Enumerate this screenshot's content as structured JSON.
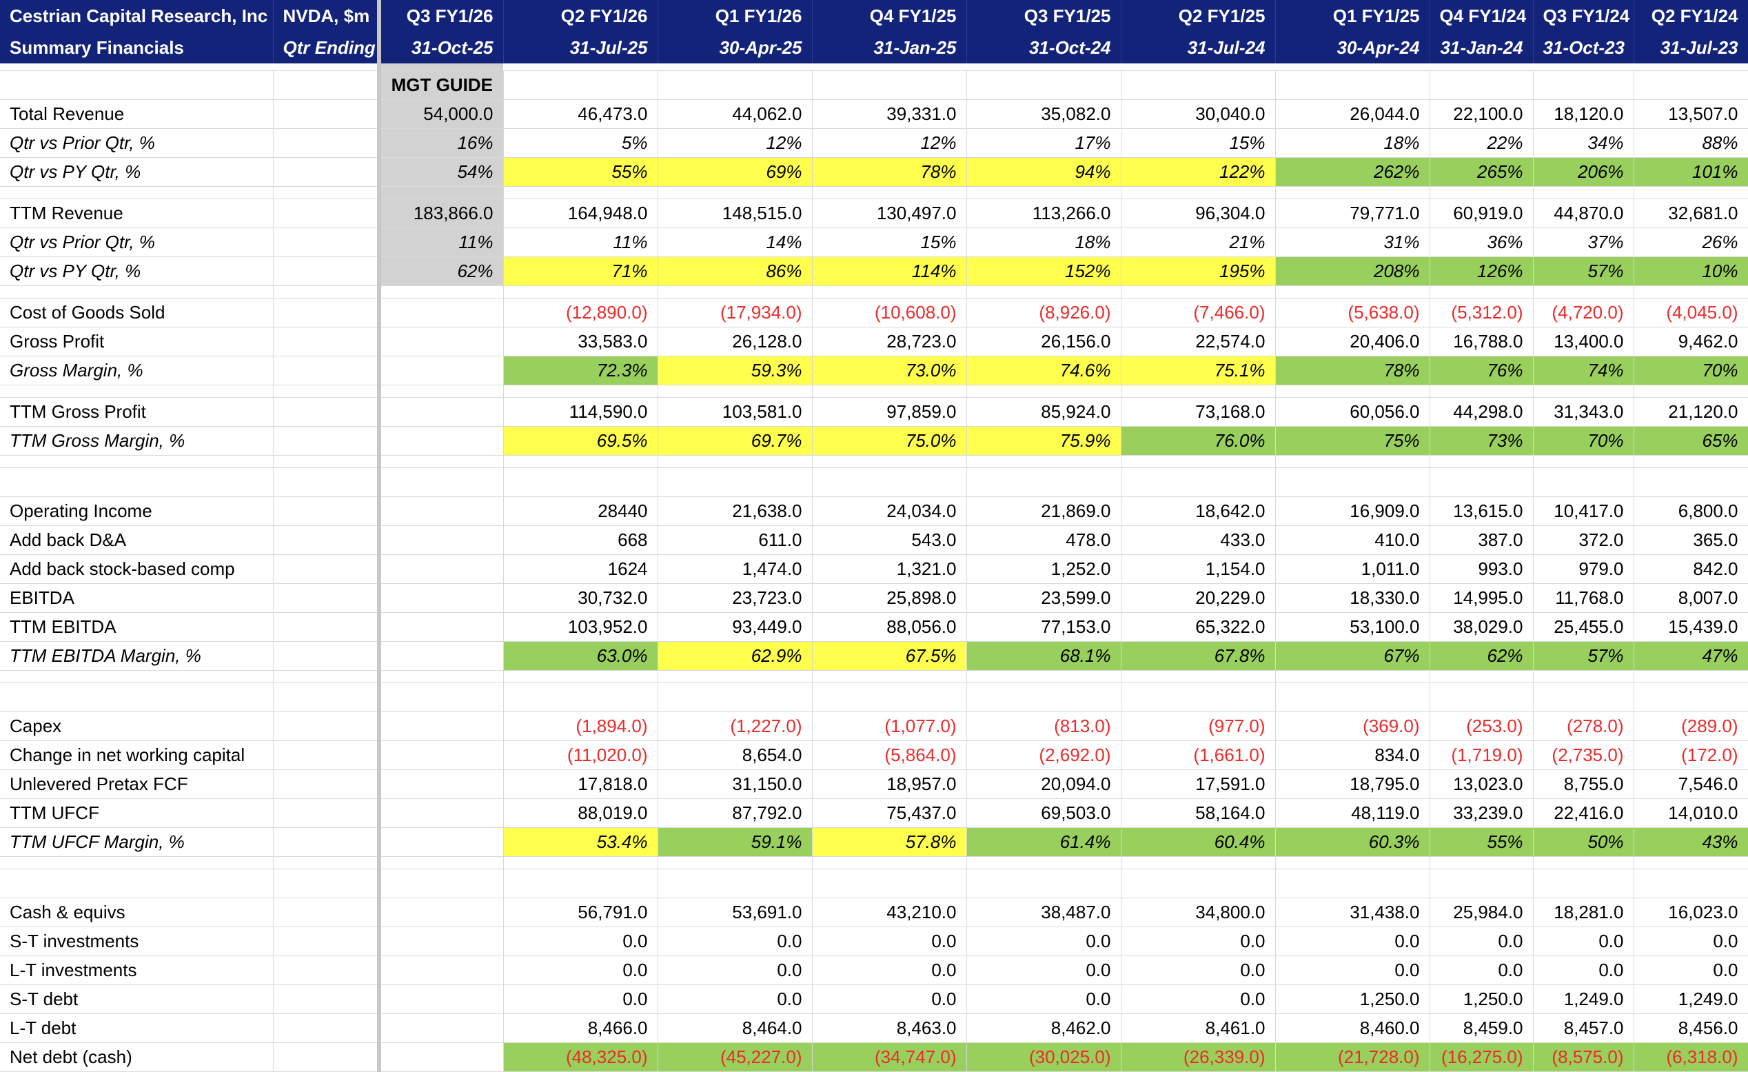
{
  "header": {
    "company": "Cestrian Capital Research, Inc",
    "subtitle": "Summary Financials",
    "ticker": "NVDA, $m",
    "ticker_sub": "Qtr Ending"
  },
  "guide_label": "MGT GUIDE",
  "columns": [
    {
      "q": "Q3 FY1/26",
      "d": "31-Oct-25"
    },
    {
      "q": "Q2 FY1/26",
      "d": "31-Jul-25"
    },
    {
      "q": "Q1 FY1/26",
      "d": "30-Apr-25"
    },
    {
      "q": "Q4 FY1/25",
      "d": "31-Jan-25"
    },
    {
      "q": "Q3 FY1/25",
      "d": "31-Oct-24"
    },
    {
      "q": "Q2 FY1/25",
      "d": "31-Jul-24"
    },
    {
      "q": "Q1 FY1/25",
      "d": "30-Apr-24"
    },
    {
      "q": "Q4 FY1/24",
      "d": "31-Jan-24"
    },
    {
      "q": "Q3 FY1/24",
      "d": "31-Oct-23"
    },
    {
      "q": "Q2 FY1/24",
      "d": "31-Jul-23"
    }
  ],
  "colors": {
    "header_bg": "#13237a",
    "yellow": "#ffff4d",
    "green": "#99cf5c",
    "guide_grey": "#d2d2d2",
    "negative_red": "#ee2a2a"
  },
  "rows": [
    {
      "label": "Total Revenue",
      "italic": false,
      "values": [
        "54,000.0",
        "46,473.0",
        "44,062.0",
        "39,331.0",
        "35,082.0",
        "30,040.0",
        "26,044.0",
        "22,100.0",
        "18,120.0",
        "13,507.0"
      ]
    },
    {
      "label": "Qtr vs Prior Qtr, %",
      "italic": true,
      "values": [
        "16%",
        "5%",
        "12%",
        "12%",
        "17%",
        "15%",
        "18%",
        "22%",
        "34%",
        "88%"
      ]
    },
    {
      "label": "Qtr vs PY Qtr, %",
      "italic": true,
      "values": [
        "54%",
        "55%",
        "69%",
        "78%",
        "94%",
        "122%",
        "262%",
        "265%",
        "206%",
        "101%"
      ],
      "fill": [
        "",
        "y",
        "y",
        "y",
        "y",
        "y",
        "g",
        "g",
        "g",
        "g"
      ]
    },
    {
      "label": "TTM Revenue",
      "italic": false,
      "values": [
        "183,866.0",
        "164,948.0",
        "148,515.0",
        "130,497.0",
        "113,266.0",
        "96,304.0",
        "79,771.0",
        "60,919.0",
        "44,870.0",
        "32,681.0"
      ]
    },
    {
      "label": "Qtr vs Prior Qtr, %",
      "italic": true,
      "values": [
        "11%",
        "11%",
        "14%",
        "15%",
        "18%",
        "21%",
        "31%",
        "36%",
        "37%",
        "26%"
      ]
    },
    {
      "label": "Qtr vs PY Qtr, %",
      "italic": true,
      "values": [
        "62%",
        "71%",
        "86%",
        "114%",
        "152%",
        "195%",
        "208%",
        "126%",
        "57%",
        "10%"
      ],
      "fill": [
        "",
        "y",
        "y",
        "y",
        "y",
        "y",
        "g",
        "g",
        "g",
        "g"
      ]
    },
    {
      "label": "Cost of Goods Sold",
      "italic": false,
      "values": [
        "",
        "(12,890.0)",
        "(17,934.0)",
        "(10,608.0)",
        "(8,926.0)",
        "(7,466.0)",
        "(5,638.0)",
        "(5,312.0)",
        "(4,720.0)",
        "(4,045.0)"
      ],
      "negative": true
    },
    {
      "label": "Gross Profit",
      "italic": false,
      "values": [
        "",
        "33,583.0",
        "26,128.0",
        "28,723.0",
        "26,156.0",
        "22,574.0",
        "20,406.0",
        "16,788.0",
        "13,400.0",
        "9,462.0"
      ]
    },
    {
      "label": "Gross Margin, %",
      "italic": true,
      "values": [
        "",
        "72.3%",
        "59.3%",
        "73.0%",
        "74.6%",
        "75.1%",
        "78%",
        "76%",
        "74%",
        "70%"
      ],
      "fill": [
        "",
        "g",
        "y",
        "y",
        "y",
        "y",
        "g",
        "g",
        "g",
        "g"
      ]
    },
    {
      "label": "TTM Gross Profit",
      "italic": false,
      "values": [
        "",
        "114,590.0",
        "103,581.0",
        "97,859.0",
        "85,924.0",
        "73,168.0",
        "60,056.0",
        "44,298.0",
        "31,343.0",
        "21,120.0"
      ]
    },
    {
      "label": "TTM Gross Margin, %",
      "italic": true,
      "values": [
        "",
        "69.5%",
        "69.7%",
        "75.0%",
        "75.9%",
        "76.0%",
        "75%",
        "73%",
        "70%",
        "65%"
      ],
      "fill": [
        "",
        "y",
        "y",
        "y",
        "y",
        "g",
        "g",
        "g",
        "g",
        "g"
      ]
    },
    {
      "label": "Operating Income",
      "italic": false,
      "values": [
        "",
        "28440",
        "21,638.0",
        "24,034.0",
        "21,869.0",
        "18,642.0",
        "16,909.0",
        "13,615.0",
        "10,417.0",
        "6,800.0"
      ]
    },
    {
      "label": "Add back D&A",
      "italic": false,
      "values": [
        "",
        "668",
        "611.0",
        "543.0",
        "478.0",
        "433.0",
        "410.0",
        "387.0",
        "372.0",
        "365.0"
      ]
    },
    {
      "label": "Add back stock-based comp",
      "italic": false,
      "values": [
        "",
        "1624",
        "1,474.0",
        "1,321.0",
        "1,252.0",
        "1,154.0",
        "1,011.0",
        "993.0",
        "979.0",
        "842.0"
      ]
    },
    {
      "label": "EBITDA",
      "italic": false,
      "values": [
        "",
        "30,732.0",
        "23,723.0",
        "25,898.0",
        "23,599.0",
        "20,229.0",
        "18,330.0",
        "14,995.0",
        "11,768.0",
        "8,007.0"
      ]
    },
    {
      "label": "TTM EBITDA",
      "italic": false,
      "values": [
        "",
        "103,952.0",
        "93,449.0",
        "88,056.0",
        "77,153.0",
        "65,322.0",
        "53,100.0",
        "38,029.0",
        "25,455.0",
        "15,439.0"
      ]
    },
    {
      "label": "TTM EBITDA Margin, %",
      "italic": true,
      "values": [
        "",
        "63.0%",
        "62.9%",
        "67.5%",
        "68.1%",
        "67.8%",
        "67%",
        "62%",
        "57%",
        "47%"
      ],
      "fill": [
        "",
        "g",
        "y",
        "y",
        "g",
        "g",
        "g",
        "g",
        "g",
        "g"
      ]
    },
    {
      "label": "Capex",
      "italic": false,
      "values": [
        "",
        "(1,894.0)",
        "(1,227.0)",
        "(1,077.0)",
        "(813.0)",
        "(977.0)",
        "(369.0)",
        "(253.0)",
        "(278.0)",
        "(289.0)"
      ],
      "negative": true
    },
    {
      "label": "Change in net working capital",
      "italic": false,
      "values": [
        "",
        "(11,020.0)",
        "8,654.0",
        "(5,864.0)",
        "(2,692.0)",
        "(1,661.0)",
        "834.0",
        "(1,719.0)",
        "(2,735.0)",
        "(172.0)"
      ]
    },
    {
      "label": "Unlevered Pretax FCF",
      "italic": false,
      "values": [
        "",
        "17,818.0",
        "31,150.0",
        "18,957.0",
        "20,094.0",
        "17,591.0",
        "18,795.0",
        "13,023.0",
        "8,755.0",
        "7,546.0"
      ]
    },
    {
      "label": "TTM UFCF",
      "italic": false,
      "values": [
        "",
        "88,019.0",
        "87,792.0",
        "75,437.0",
        "69,503.0",
        "58,164.0",
        "48,119.0",
        "33,239.0",
        "22,416.0",
        "14,010.0"
      ]
    },
    {
      "label": "TTM UFCF Margin, %",
      "italic": true,
      "values": [
        "",
        "53.4%",
        "59.1%",
        "57.8%",
        "61.4%",
        "60.4%",
        "60.3%",
        "55%",
        "50%",
        "43%"
      ],
      "fill": [
        "",
        "y",
        "g",
        "y",
        "g",
        "g",
        "g",
        "g",
        "g",
        "g"
      ]
    },
    {
      "label": "Cash & equivs",
      "italic": false,
      "values": [
        "",
        "56,791.0",
        "53,691.0",
        "43,210.0",
        "38,487.0",
        "34,800.0",
        "31,438.0",
        "25,984.0",
        "18,281.0",
        "16,023.0"
      ]
    },
    {
      "label": "S-T investments",
      "italic": false,
      "values": [
        "",
        "0.0",
        "0.0",
        "0.0",
        "0.0",
        "0.0",
        "0.0",
        "0.0",
        "0.0",
        "0.0"
      ]
    },
    {
      "label": "L-T investments",
      "italic": false,
      "values": [
        "",
        "0.0",
        "0.0",
        "0.0",
        "0.0",
        "0.0",
        "0.0",
        "0.0",
        "0.0",
        "0.0"
      ]
    },
    {
      "label": "S-T debt",
      "italic": false,
      "values": [
        "",
        "0.0",
        "0.0",
        "0.0",
        "0.0",
        "0.0",
        "1,250.0",
        "1,250.0",
        "1,249.0",
        "1,249.0"
      ]
    },
    {
      "label": "L-T debt",
      "italic": false,
      "values": [
        "",
        "8,466.0",
        "8,464.0",
        "8,463.0",
        "8,462.0",
        "8,461.0",
        "8,460.0",
        "8,459.0",
        "8,457.0",
        "8,456.0"
      ]
    },
    {
      "label": "Net debt (cash)",
      "italic": false,
      "values": [
        "",
        "(48,325.0)",
        "(45,227.0)",
        "(34,747.0)",
        "(30,025.0)",
        "(26,339.0)",
        "(21,728.0)",
        "(16,275.0)",
        "(8,575.0)",
        "(6,318.0)"
      ],
      "negative": true,
      "fill": [
        "",
        "g",
        "g",
        "g",
        "g",
        "g",
        "g",
        "g",
        "g",
        "g"
      ]
    }
  ]
}
